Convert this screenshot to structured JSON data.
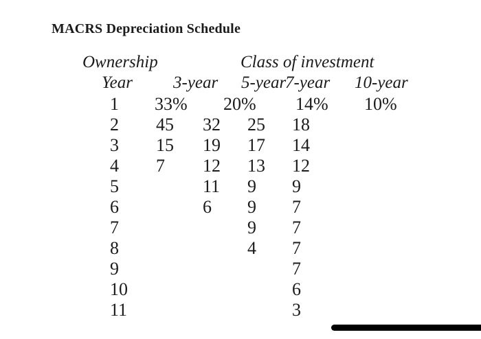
{
  "title": "MACRS Depreciation Schedule",
  "table": {
    "group_headers": {
      "ownership": "Ownership",
      "class_of_investment": "Class of investment"
    },
    "column_headers": {
      "year": "Year",
      "y3": "3-year",
      "y5": "5-year",
      "y7": "7-year",
      "y10": "10-year"
    },
    "rows": [
      {
        "year": "1",
        "y3": "33%",
        "y5": "20%",
        "y7": "14%",
        "y10": "10%"
      },
      {
        "year": "2",
        "y3": "45",
        "y5": "32",
        "y7": "25",
        "y10": "18"
      },
      {
        "year": "3",
        "y3": "15",
        "y5": "19",
        "y7": "17",
        "y10": "14"
      },
      {
        "year": "4",
        "y3": "7",
        "y5": "12",
        "y7": "13",
        "y10": "12"
      },
      {
        "year": "5",
        "y3": "",
        "y5": "11",
        "y7": "9",
        "y10": "9"
      },
      {
        "year": "6",
        "y3": "",
        "y5": "6",
        "y7": "9",
        "y10": "7"
      },
      {
        "year": "7",
        "y3": "",
        "y5": "",
        "y7": "9",
        "y10": "7"
      },
      {
        "year": "8",
        "y3": "",
        "y5": "",
        "y7": "4",
        "y10": "7"
      },
      {
        "year": "9",
        "y3": "",
        "y5": "",
        "y7": "",
        "y10": "7"
      },
      {
        "year": "10",
        "y3": "",
        "y5": "",
        "y7": "",
        "y10": "6"
      },
      {
        "year": "11",
        "y3": "",
        "y5": "",
        "y7": "",
        "y10": "3"
      }
    ]
  },
  "decorations": {
    "bottom_bar_color": "#000000",
    "text_color": "#1b1b1b",
    "background_color": "#ffffff"
  }
}
